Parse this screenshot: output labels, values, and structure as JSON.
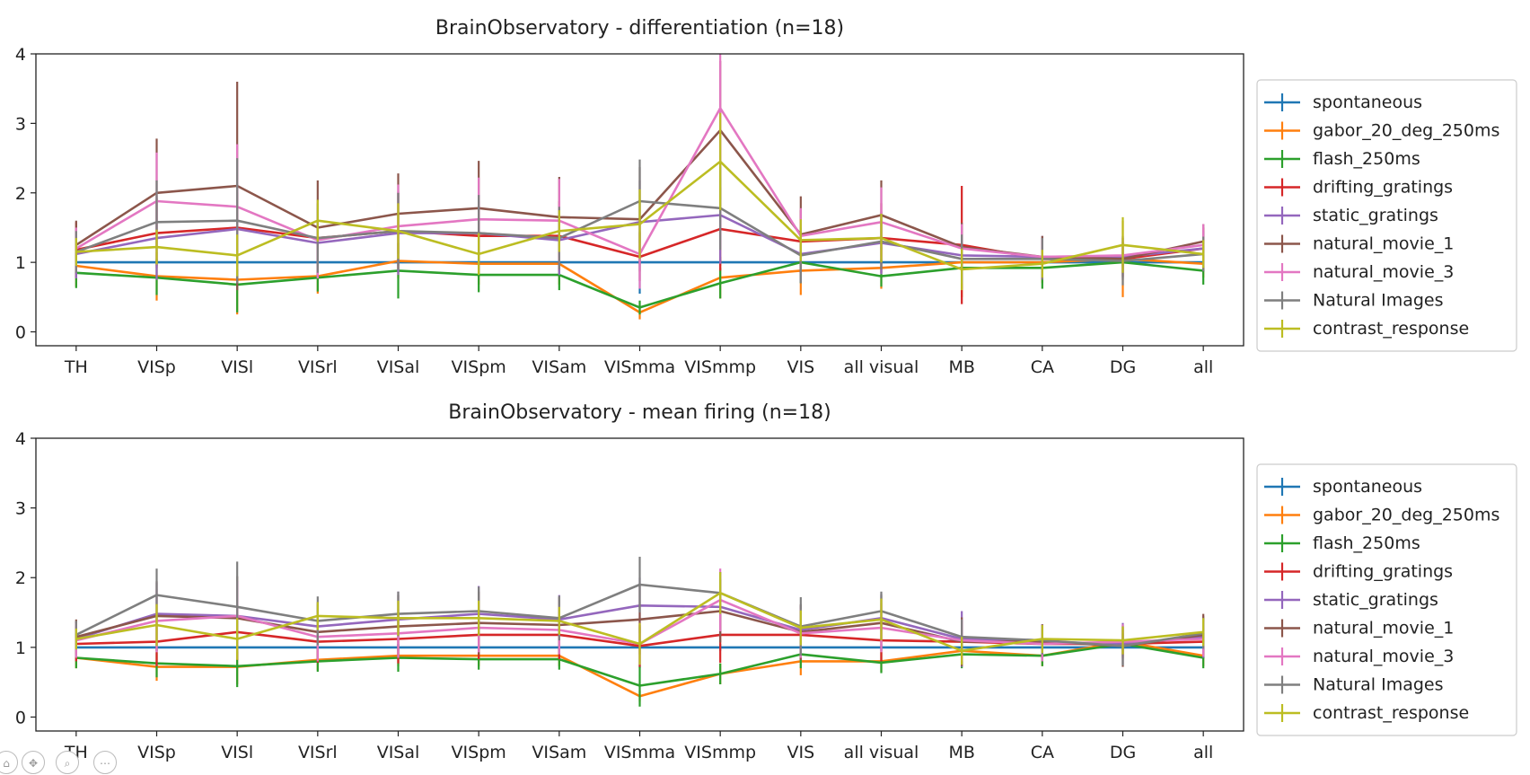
{
  "figure": {
    "toolbar": [
      {
        "name": "home-icon",
        "glyph": "⌂"
      },
      {
        "name": "pan-icon",
        "glyph": "✥"
      },
      {
        "name": "zoom-icon",
        "glyph": "⌕"
      },
      {
        "name": "more-icon",
        "glyph": "⋯"
      }
    ]
  },
  "chart_data": [
    {
      "type": "line",
      "title": "BrainObservatory - differentiation (n=18)",
      "xlabel": "",
      "ylabel": "",
      "categories": [
        "TH",
        "VISp",
        "VISl",
        "VISrl",
        "VISal",
        "VISpm",
        "VISam",
        "VISmma",
        "VISmmp",
        "VIS",
        "all visual",
        "MB",
        "CA",
        "DG",
        "all"
      ],
      "ylim": [
        -0.2,
        4
      ],
      "yticks": [
        0,
        1,
        2,
        3,
        4
      ],
      "grid": false,
      "legend": "right",
      "series": [
        {
          "name": "spontaneous",
          "color": "#1f77b4",
          "values": [
            1,
            1,
            1,
            1,
            1,
            1,
            1,
            1,
            1,
            1,
            1,
            1,
            1,
            1,
            1
          ],
          "err": [
            0.05,
            0.05,
            0.05,
            0.05,
            0.05,
            0.05,
            0.05,
            0.45,
            0.05,
            0.05,
            0.05,
            0.05,
            0.05,
            0.05,
            0.05
          ]
        },
        {
          "name": "gabor_20_deg_250ms",
          "color": "#ff7f0e",
          "values": [
            0.95,
            0.8,
            0.75,
            0.8,
            1.02,
            0.98,
            0.98,
            0.28,
            0.78,
            0.88,
            0.92,
            1.0,
            1.0,
            1.05,
            0.98
          ],
          "err": [
            0.3,
            0.35,
            0.5,
            0.25,
            0.25,
            0.3,
            0.3,
            0.1,
            0.3,
            0.35,
            0.3,
            0.5,
            0.3,
            0.55,
            0.2
          ]
        },
        {
          "name": "flash_250ms",
          "color": "#2ca02c",
          "values": [
            0.85,
            0.78,
            0.68,
            0.78,
            0.88,
            0.82,
            0.82,
            0.35,
            0.7,
            1.0,
            0.8,
            0.92,
            0.92,
            1.0,
            0.88
          ],
          "err": [
            0.22,
            0.25,
            0.4,
            0.2,
            0.4,
            0.25,
            0.22,
            0.1,
            0.22,
            0.3,
            0.15,
            0.3,
            0.3,
            0.15,
            0.2
          ]
        },
        {
          "name": "drifting_gratings",
          "color": "#d62728",
          "values": [
            1.18,
            1.42,
            1.5,
            1.35,
            1.45,
            1.38,
            1.38,
            1.08,
            1.48,
            1.3,
            1.35,
            1.25,
            1.05,
            1.05,
            1.2
          ],
          "err": [
            0.4,
            0.5,
            0.5,
            0.5,
            0.55,
            0.5,
            0.5,
            0.35,
            0.6,
            0.45,
            0.5,
            0.85,
            0.3,
            0.25,
            0.3
          ]
        },
        {
          "name": "static_gratings",
          "color": "#9467bd",
          "values": [
            1.12,
            1.35,
            1.48,
            1.28,
            1.42,
            1.42,
            1.32,
            1.58,
            1.68,
            1.12,
            1.28,
            1.1,
            1.08,
            1.08,
            1.2
          ],
          "err": [
            0.35,
            0.6,
            0.65,
            0.5,
            0.6,
            0.55,
            0.5,
            0.6,
            0.7,
            0.4,
            0.45,
            0.4,
            0.3,
            0.3,
            0.25
          ]
        },
        {
          "name": "natural_movie_1",
          "color": "#8c564b",
          "values": [
            1.25,
            2.0,
            2.1,
            1.5,
            1.7,
            1.78,
            1.65,
            1.62,
            2.9,
            1.4,
            1.68,
            1.22,
            1.08,
            1.05,
            1.3
          ],
          "err": [
            0.35,
            0.78,
            1.5,
            0.68,
            0.58,
            0.68,
            0.58,
            0.75,
            1.0,
            0.55,
            0.5,
            0.35,
            0.3,
            0.3,
            0.25
          ]
        },
        {
          "name": "natural_movie_3",
          "color": "#e377c2",
          "values": [
            1.2,
            1.88,
            1.8,
            1.32,
            1.52,
            1.62,
            1.6,
            1.12,
            3.22,
            1.38,
            1.58,
            1.2,
            1.08,
            1.1,
            1.25
          ],
          "err": [
            0.3,
            0.7,
            0.9,
            0.55,
            0.6,
            0.6,
            0.6,
            0.5,
            1.0,
            0.4,
            0.5,
            0.35,
            0.25,
            0.25,
            0.3
          ]
        },
        {
          "name": "Natural Images",
          "color": "#7f7f7f",
          "values": [
            1.15,
            1.58,
            1.6,
            1.35,
            1.45,
            1.42,
            1.35,
            1.88,
            1.78,
            1.1,
            1.3,
            1.05,
            1.05,
            1.02,
            1.12
          ],
          "err": [
            0.3,
            0.6,
            0.9,
            0.5,
            0.55,
            0.55,
            0.45,
            0.6,
            0.6,
            0.4,
            0.4,
            0.35,
            0.3,
            0.35,
            0.25
          ]
        },
        {
          "name": "contrast_response",
          "color": "#bcbd22",
          "values": [
            1.15,
            1.22,
            1.1,
            1.6,
            1.45,
            1.12,
            1.45,
            1.55,
            2.45,
            1.32,
            1.35,
            0.9,
            0.98,
            1.25,
            1.12
          ],
          "err": [
            0.2,
            0.25,
            0.3,
            0.3,
            0.4,
            0.3,
            0.3,
            0.5,
            0.7,
            0.3,
            0.35,
            0.3,
            0.2,
            0.4,
            0.2
          ]
        }
      ]
    },
    {
      "type": "line",
      "title": "BrainObservatory - mean firing (n=18)",
      "xlabel": "",
      "ylabel": "",
      "categories": [
        "TH",
        "VISp",
        "VISl",
        "VISrl",
        "VISal",
        "VISpm",
        "VISam",
        "VISmma",
        "VISmmp",
        "VIS",
        "all visual",
        "MB",
        "CA",
        "DG",
        "all"
      ],
      "ylim": [
        -0.2,
        4
      ],
      "yticks": [
        0,
        1,
        2,
        3,
        4
      ],
      "grid": false,
      "legend": "right",
      "series": [
        {
          "name": "spontaneous",
          "color": "#1f77b4",
          "values": [
            1,
            1,
            1,
            1,
            1,
            1,
            1,
            1,
            1,
            1,
            1,
            1,
            1,
            1,
            1
          ],
          "err": [
            0.05,
            0.05,
            0.05,
            0.05,
            0.05,
            0.05,
            0.05,
            0.3,
            0.05,
            0.05,
            0.05,
            0.05,
            0.05,
            0.05,
            0.05
          ]
        },
        {
          "name": "gabor_20_deg_250ms",
          "color": "#ff7f0e",
          "values": [
            0.85,
            0.72,
            0.72,
            0.82,
            0.88,
            0.88,
            0.88,
            0.3,
            0.62,
            0.8,
            0.8,
            0.95,
            0.88,
            1.08,
            0.88
          ],
          "err": [
            0.15,
            0.2,
            0.25,
            0.15,
            0.15,
            0.15,
            0.15,
            0.08,
            0.15,
            0.2,
            0.15,
            0.2,
            0.15,
            0.2,
            0.15
          ]
        },
        {
          "name": "flash_250ms",
          "color": "#2ca02c",
          "values": [
            0.85,
            0.77,
            0.73,
            0.8,
            0.85,
            0.83,
            0.83,
            0.45,
            0.62,
            0.9,
            0.78,
            0.9,
            0.88,
            1.05,
            0.85
          ],
          "err": [
            0.15,
            0.2,
            0.3,
            0.15,
            0.2,
            0.15,
            0.15,
            0.3,
            0.15,
            0.2,
            0.15,
            0.2,
            0.15,
            0.15,
            0.15
          ]
        },
        {
          "name": "drifting_gratings",
          "color": "#d62728",
          "values": [
            1.05,
            1.08,
            1.22,
            1.08,
            1.12,
            1.18,
            1.18,
            1.02,
            1.18,
            1.18,
            1.1,
            1.08,
            1.05,
            1.05,
            1.08
          ],
          "err": [
            0.25,
            0.35,
            0.4,
            0.3,
            0.35,
            0.35,
            0.35,
            0.3,
            0.4,
            0.35,
            0.3,
            0.3,
            0.2,
            0.2,
            0.2
          ]
        },
        {
          "name": "static_gratings",
          "color": "#9467bd",
          "values": [
            1.12,
            1.48,
            1.45,
            1.3,
            1.4,
            1.48,
            1.4,
            1.6,
            1.58,
            1.25,
            1.42,
            1.12,
            1.08,
            1.05,
            1.15
          ],
          "err": [
            0.25,
            0.45,
            0.5,
            0.35,
            0.4,
            0.4,
            0.35,
            0.4,
            0.4,
            0.35,
            0.35,
            0.4,
            0.25,
            0.3,
            0.3
          ]
        },
        {
          "name": "natural_movie_1",
          "color": "#8c564b",
          "values": [
            1.15,
            1.45,
            1.42,
            1.22,
            1.3,
            1.35,
            1.32,
            1.4,
            1.52,
            1.22,
            1.35,
            1.08,
            1.08,
            1.02,
            1.18
          ],
          "err": [
            0.25,
            0.5,
            0.6,
            0.4,
            0.45,
            0.45,
            0.4,
            0.5,
            0.45,
            0.4,
            0.4,
            0.35,
            0.25,
            0.3,
            0.3
          ]
        },
        {
          "name": "natural_movie_3",
          "color": "#e377c2",
          "values": [
            1.1,
            1.38,
            1.45,
            1.15,
            1.2,
            1.28,
            1.25,
            1.05,
            1.68,
            1.2,
            1.28,
            1.1,
            1.05,
            1.08,
            1.12
          ],
          "err": [
            0.25,
            0.45,
            0.5,
            0.35,
            0.35,
            0.35,
            0.35,
            0.3,
            0.45,
            0.35,
            0.35,
            0.3,
            0.25,
            0.25,
            0.25
          ]
        },
        {
          "name": "Natural Images",
          "color": "#7f7f7f",
          "values": [
            1.18,
            1.75,
            1.58,
            1.38,
            1.48,
            1.52,
            1.42,
            1.9,
            1.78,
            1.3,
            1.52,
            1.15,
            1.1,
            1.02,
            1.2
          ],
          "err": [
            0.2,
            0.38,
            0.65,
            0.35,
            0.32,
            0.35,
            0.32,
            0.4,
            0.3,
            0.42,
            0.28,
            0.25,
            0.2,
            0.28,
            0.22
          ]
        },
        {
          "name": "contrast_response",
          "color": "#bcbd22",
          "values": [
            1.12,
            1.32,
            1.12,
            1.45,
            1.42,
            1.42,
            1.38,
            1.05,
            1.78,
            1.28,
            1.4,
            0.95,
            1.12,
            1.1,
            1.22
          ],
          "err": [
            0.15,
            0.3,
            0.3,
            0.2,
            0.25,
            0.25,
            0.2,
            0.3,
            0.3,
            0.25,
            0.3,
            0.2,
            0.2,
            0.2,
            0.2
          ]
        }
      ]
    }
  ]
}
